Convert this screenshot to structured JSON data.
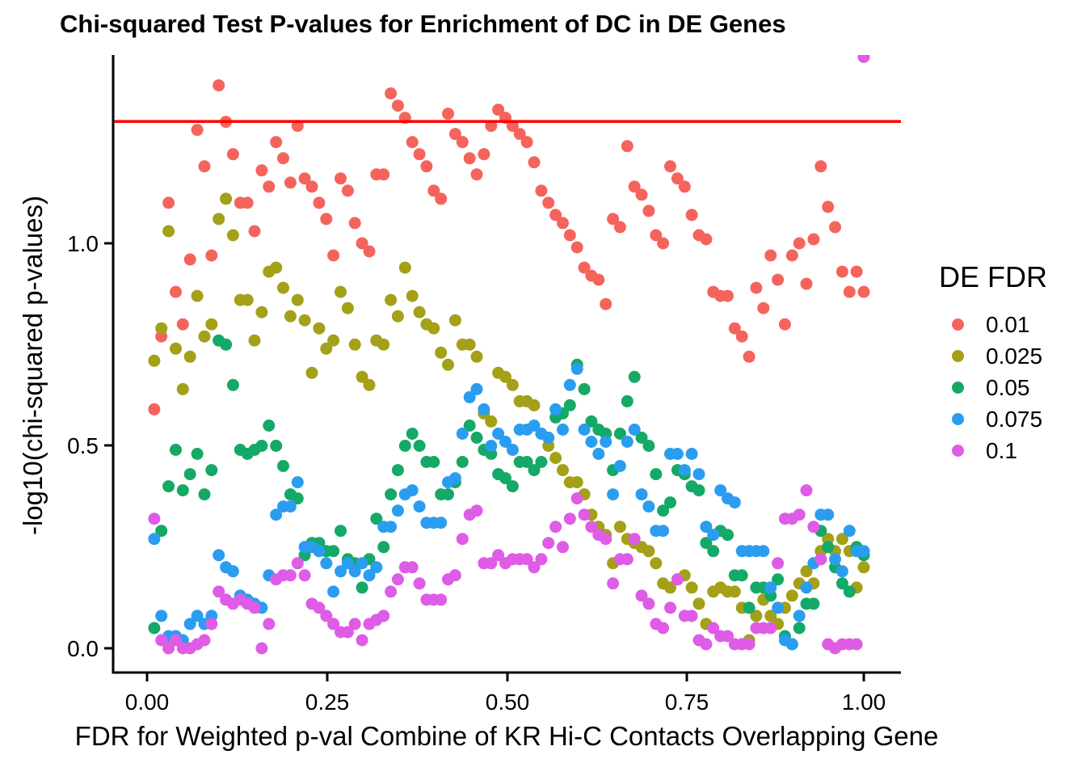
{
  "title": "Chi-squared Test P-values for Enrichment of DC in DE Genes",
  "x_axis": {
    "label": "FDR for Weighted p-val Combine of KR Hi-C Contacts Overlapping Gene",
    "ticks": [
      "0.00",
      "0.25",
      "0.50",
      "0.75",
      "1.00"
    ]
  },
  "y_axis": {
    "label": "-log10(chi-squared p-values)",
    "ticks": [
      "0.0",
      "0.5",
      "1.0"
    ]
  },
  "legend": {
    "title": "DE FDR",
    "items": [
      {
        "label": "0.01",
        "color": "#F4645D"
      },
      {
        "label": "0.025",
        "color": "#A4A018"
      },
      {
        "label": "0.05",
        "color": "#14A966"
      },
      {
        "label": "0.075",
        "color": "#2B9DF0"
      },
      {
        "label": "0.1",
        "color": "#DE5CE6"
      }
    ]
  },
  "chart_data": {
    "type": "scatter",
    "title": "Chi-squared Test P-values for Enrichment of DC in DE Genes",
    "xlabel": "FDR for Weighted p-val Combine of KR Hi-C Contacts Overlapping Gene",
    "ylabel": "-log10(chi-squared p-values)",
    "xlim": [
      -0.047,
      1.052
    ],
    "ylim": [
      -0.06,
      1.465
    ],
    "x_ticks": [
      0.0,
      0.25,
      0.5,
      0.75,
      1.0
    ],
    "y_ticks": [
      0.0,
      0.5,
      1.0
    ],
    "grid": false,
    "legend_position": "right",
    "threshold_line": {
      "y": 1.301,
      "color": "#FF0000",
      "meaning": "-log10(0.05)"
    },
    "x": [
      0.01,
      0.02,
      0.03,
      0.04,
      0.05,
      0.06,
      0.07,
      0.08,
      0.09,
      0.1,
      0.11,
      0.12,
      0.13,
      0.14,
      0.15,
      0.16,
      0.17,
      0.18,
      0.19,
      0.2,
      0.21,
      0.22,
      0.23,
      0.24,
      0.25,
      0.26,
      0.27,
      0.28,
      0.29,
      0.3,
      0.31,
      0.32,
      0.33,
      0.34,
      0.35,
      0.36,
      0.37,
      0.38,
      0.39,
      0.4,
      0.41,
      0.42,
      0.43,
      0.44,
      0.45,
      0.46,
      0.47,
      0.48,
      0.49,
      0.5,
      0.51,
      0.52,
      0.53,
      0.54,
      0.55,
      0.56,
      0.57,
      0.58,
      0.59,
      0.6,
      0.61,
      0.62,
      0.63,
      0.64,
      0.65,
      0.66,
      0.67,
      0.68,
      0.69,
      0.7,
      0.71,
      0.72,
      0.73,
      0.74,
      0.75,
      0.76,
      0.77,
      0.78,
      0.79,
      0.8,
      0.81,
      0.82,
      0.83,
      0.84,
      0.85,
      0.86,
      0.87,
      0.88,
      0.89,
      0.9,
      0.91,
      0.92,
      0.93,
      0.94,
      0.95,
      0.96,
      0.97,
      0.98,
      0.99,
      1.0
    ],
    "series": [
      {
        "name": "0.01",
        "color": "#F4645D",
        "values": [
          0.59,
          0.77,
          1.1,
          0.88,
          0.8,
          0.96,
          1.28,
          1.19,
          0.97,
          1.39,
          1.3,
          1.22,
          1.1,
          1.1,
          1.03,
          1.18,
          1.14,
          1.25,
          1.21,
          1.15,
          1.29,
          1.16,
          1.14,
          1.1,
          1.06,
          0.97,
          1.16,
          1.13,
          1.05,
          1.0,
          0.98,
          1.17,
          1.17,
          1.37,
          1.34,
          1.31,
          1.25,
          1.22,
          1.19,
          1.13,
          1.11,
          1.32,
          1.27,
          1.25,
          1.21,
          1.17,
          1.22,
          1.29,
          1.33,
          1.31,
          1.29,
          1.27,
          1.25,
          1.2,
          1.13,
          1.1,
          1.07,
          1.05,
          1.02,
          0.99,
          0.94,
          0.92,
          0.91,
          0.85,
          1.06,
          1.04,
          1.24,
          1.14,
          1.12,
          1.08,
          1.02,
          1.0,
          1.19,
          1.16,
          1.14,
          1.07,
          1.02,
          1.01,
          0.88,
          0.87,
          0.87,
          0.79,
          0.77,
          0.72,
          0.89,
          0.84,
          0.97,
          0.91,
          0.8,
          0.97,
          1.0,
          0.9,
          1.01,
          1.19,
          1.09,
          1.04,
          0.93,
          0.88,
          0.93,
          0.88
        ]
      },
      {
        "name": "0.025",
        "color": "#A4A018",
        "values": [
          0.71,
          0.79,
          1.03,
          0.74,
          0.64,
          0.72,
          0.87,
          0.77,
          0.8,
          1.06,
          1.11,
          1.02,
          0.86,
          0.86,
          0.76,
          0.83,
          0.93,
          0.94,
          0.89,
          0.82,
          0.86,
          0.81,
          0.68,
          0.79,
          0.74,
          0.76,
          0.88,
          0.84,
          0.75,
          0.67,
          0.65,
          0.76,
          0.75,
          0.86,
          0.82,
          0.94,
          0.87,
          0.83,
          0.8,
          0.79,
          0.73,
          0.7,
          0.81,
          0.75,
          0.75,
          0.72,
          0.58,
          0.56,
          0.68,
          0.67,
          0.65,
          0.61,
          0.61,
          0.6,
          0.53,
          0.5,
          0.47,
          0.44,
          0.41,
          0.41,
          0.38,
          0.33,
          0.3,
          0.28,
          0.21,
          0.3,
          0.27,
          0.26,
          0.25,
          0.24,
          0.21,
          0.16,
          0.15,
          0.17,
          0.18,
          0.15,
          0.11,
          0.06,
          0.14,
          0.15,
          0.14,
          0.14,
          0.1,
          0.02,
          0.08,
          0.12,
          0.08,
          0.06,
          0.1,
          0.13,
          0.16,
          0.19,
          0.16,
          0.24,
          0.27,
          0.24,
          0.27,
          0.24,
          0.15,
          0.2
        ]
      },
      {
        "name": "0.05",
        "color": "#14A966",
        "values": [
          0.05,
          0.29,
          0.4,
          0.49,
          0.39,
          0.43,
          0.48,
          0.38,
          0.44,
          0.76,
          0.75,
          0.65,
          0.49,
          0.48,
          0.49,
          0.5,
          0.55,
          0.5,
          0.45,
          0.38,
          0.37,
          0.23,
          0.26,
          0.26,
          0.24,
          0.24,
          0.29,
          0.22,
          0.21,
          0.15,
          0.22,
          0.32,
          0.25,
          0.38,
          0.44,
          0.5,
          0.53,
          0.5,
          0.46,
          0.46,
          0.38,
          0.38,
          0.41,
          0.46,
          0.55,
          0.52,
          0.49,
          0.48,
          0.43,
          0.42,
          0.4,
          0.46,
          0.46,
          0.44,
          0.46,
          0.52,
          0.57,
          0.58,
          0.6,
          0.7,
          0.64,
          0.56,
          0.54,
          0.53,
          0.44,
          0.53,
          0.61,
          0.67,
          0.52,
          0.5,
          0.43,
          0.34,
          0.36,
          0.44,
          0.43,
          0.4,
          0.39,
          0.26,
          0.24,
          0.29,
          0.28,
          0.18,
          0.18,
          0.1,
          0.15,
          0.15,
          0.13,
          0.17,
          0.03,
          0.01,
          0.05,
          0.11,
          0.11,
          0.29,
          0.25,
          0.2,
          0.16,
          0.14,
          0.25,
          0.23
        ]
      },
      {
        "name": "0.075",
        "color": "#2B9DF0",
        "values": [
          0.27,
          0.08,
          0.03,
          0.03,
          0.02,
          0.06,
          0.08,
          0.06,
          0.08,
          0.23,
          0.2,
          0.19,
          0.13,
          0.12,
          0.11,
          0.1,
          0.18,
          0.33,
          0.35,
          0.35,
          0.41,
          0.25,
          0.25,
          0.24,
          0.21,
          0.14,
          0.19,
          0.21,
          0.19,
          0.21,
          0.18,
          0.2,
          0.3,
          0.3,
          0.34,
          0.38,
          0.39,
          0.35,
          0.31,
          0.31,
          0.31,
          0.41,
          0.42,
          0.53,
          0.62,
          0.64,
          0.59,
          0.5,
          0.53,
          0.51,
          0.49,
          0.54,
          0.54,
          0.55,
          0.53,
          0.52,
          0.59,
          0.54,
          0.65,
          0.69,
          0.54,
          0.51,
          0.48,
          0.51,
          0.38,
          0.45,
          0.51,
          0.54,
          0.38,
          0.35,
          0.29,
          0.29,
          0.48,
          0.48,
          0.44,
          0.48,
          0.43,
          0.3,
          0.28,
          0.39,
          0.37,
          0.36,
          0.24,
          0.24,
          0.24,
          0.24,
          0.15,
          0.1,
          0.02,
          0.01,
          0.08,
          0.15,
          0.21,
          0.33,
          0.33,
          0.22,
          0.19,
          0.29,
          0.24,
          0.24
        ]
      },
      {
        "name": "0.1",
        "color": "#DE5CE6",
        "values": [
          0.32,
          0.02,
          0.0,
          0.02,
          0.0,
          0.0,
          0.01,
          0.02,
          0.06,
          0.14,
          0.12,
          0.11,
          0.12,
          0.11,
          0.1,
          0.0,
          0.06,
          0.17,
          0.18,
          0.18,
          0.21,
          0.18,
          0.11,
          0.1,
          0.08,
          0.06,
          0.04,
          0.04,
          0.06,
          0.02,
          0.06,
          0.07,
          0.08,
          0.14,
          0.17,
          0.2,
          0.2,
          0.16,
          0.12,
          0.12,
          0.12,
          0.17,
          0.18,
          0.27,
          0.33,
          0.34,
          0.21,
          0.21,
          0.23,
          0.21,
          0.22,
          0.22,
          0.22,
          0.2,
          0.22,
          0.26,
          0.3,
          0.25,
          0.32,
          0.37,
          0.33,
          0.3,
          0.28,
          0.27,
          0.16,
          0.22,
          0.22,
          0.27,
          0.13,
          0.11,
          0.06,
          0.05,
          0.1,
          0.17,
          0.08,
          0.08,
          0.02,
          0.01,
          0.05,
          0.03,
          0.03,
          0.01,
          0.01,
          0.01,
          0.05,
          0.05,
          0.05,
          0.21,
          0.32,
          0.32,
          0.33,
          0.39,
          0.3,
          0.22,
          0.01,
          0.0,
          0.01,
          0.01,
          0.01,
          1.46
        ]
      }
    ]
  }
}
